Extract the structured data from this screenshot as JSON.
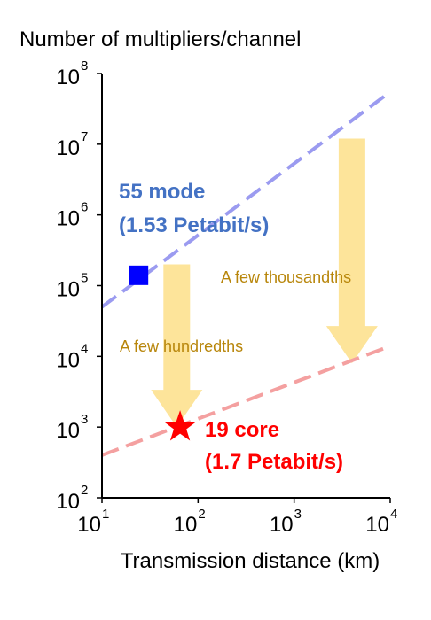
{
  "colors": {
    "axis": "#000000",
    "series_55mode": "#9b9bf0",
    "series_19core": "#f4a0a0",
    "arrow": "#fde49a",
    "label_55mode": "#4472c4",
    "label_19core": "#ff0000",
    "annotation": "#b8860b",
    "square_marker": "#0000ff",
    "star_marker": "#ff0000"
  },
  "chart_data": {
    "type": "line",
    "ylabel": "Number of multipliers/channel",
    "xlabel": "Transmission distance (km)",
    "x_scale": "log",
    "y_scale": "log",
    "xlim": [
      10,
      10000
    ],
    "ylim": [
      100,
      100000000
    ],
    "x_ticks": [
      {
        "value": 10,
        "base": "10",
        "exp": "1"
      },
      {
        "value": 100,
        "base": "10",
        "exp": "2"
      },
      {
        "value": 1000,
        "base": "10",
        "exp": "3"
      },
      {
        "value": 10000,
        "base": "10",
        "exp": "4"
      }
    ],
    "y_ticks": [
      {
        "value": 100,
        "base": "10",
        "exp": "2"
      },
      {
        "value": 1000,
        "base": "10",
        "exp": "3"
      },
      {
        "value": 10000,
        "base": "10",
        "exp": "4"
      },
      {
        "value": 100000,
        "base": "10",
        "exp": "5"
      },
      {
        "value": 1000000,
        "base": "10",
        "exp": "6"
      },
      {
        "value": 10000000,
        "base": "10",
        "exp": "7"
      },
      {
        "value": 100000000,
        "base": "10",
        "exp": "8"
      }
    ],
    "series": [
      {
        "key": "55mode",
        "style": "dashed",
        "x": [
          10,
          10000
        ],
        "y": [
          50000,
          55000000
        ]
      },
      {
        "key": "19core",
        "style": "dashed",
        "x": [
          10,
          10000
        ],
        "y": [
          400,
          14000
        ]
      }
    ],
    "points": [
      {
        "key": "square",
        "marker": "square",
        "x": 24,
        "y": 140000
      },
      {
        "key": "star",
        "marker": "star",
        "x": 65,
        "y": 1000
      }
    ],
    "labels": {
      "mode55_line1": "55 mode",
      "mode55_line2": "(1.53 Petabit/s)",
      "core19_line1": "19 core",
      "core19_line2": "(1.7 Petabit/s)",
      "hundredths": "A few hundredths",
      "thousandths": "A few thousandths"
    },
    "arrows": [
      {
        "key": "hundredths",
        "x": 60,
        "y_from": 200000,
        "y_to": 1000
      },
      {
        "key": "thousandths",
        "x": 4000,
        "y_from": 12000000,
        "y_to": 8000
      }
    ]
  }
}
